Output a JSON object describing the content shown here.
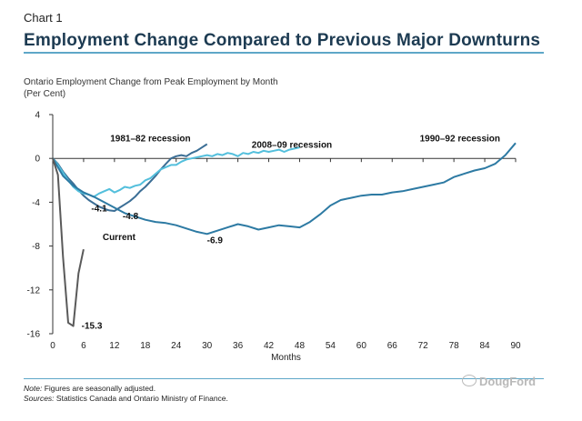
{
  "header": {
    "chart_label": "Chart 1",
    "title": "Employment Change Compared to Previous Major Downturns"
  },
  "chart_data": {
    "type": "line",
    "subtitle": "Ontario Employment Change from Peak Employment by Month",
    "unit": "(Per Cent)",
    "xlabel": "Months",
    "ylabel": "",
    "xlim": [
      0,
      90
    ],
    "ylim": [
      -16,
      4
    ],
    "xticks": [
      0,
      6,
      12,
      18,
      24,
      30,
      36,
      42,
      48,
      54,
      60,
      66,
      72,
      78,
      84,
      90
    ],
    "yticks": [
      4,
      0,
      -4,
      -8,
      -12,
      -16
    ],
    "grid": false,
    "series": [
      {
        "name": "1981–82 recession",
        "color": "#3b6e95",
        "x": [
          0,
          1,
          2,
          3,
          4,
          5,
          6,
          7,
          8,
          9,
          10,
          11,
          12,
          13,
          14,
          15,
          16,
          17,
          18,
          19,
          20,
          21,
          22,
          23,
          24,
          25,
          26,
          27,
          28,
          29,
          30
        ],
        "y": [
          0,
          -0.5,
          -1.2,
          -1.8,
          -2.3,
          -2.9,
          -3.4,
          -3.8,
          -4.1,
          -4.4,
          -4.6,
          -4.75,
          -4.8,
          -4.5,
          -4.2,
          -3.9,
          -3.5,
          -3.0,
          -2.6,
          -2.1,
          -1.6,
          -1.0,
          -0.5,
          0.0,
          0.2,
          0.3,
          0.2,
          0.5,
          0.7,
          1.0,
          1.3
        ]
      },
      {
        "name": "2008–09 recession",
        "color": "#53bfdc",
        "x": [
          0,
          1,
          2,
          3,
          4,
          5,
          6,
          7,
          8,
          9,
          10,
          11,
          12,
          13,
          14,
          15,
          16,
          17,
          18,
          19,
          20,
          21,
          22,
          23,
          24,
          25,
          26,
          27,
          28,
          29,
          30,
          31,
          32,
          33,
          34,
          35,
          36,
          37,
          38,
          39,
          40,
          41,
          42,
          43,
          44,
          45,
          46,
          47,
          48
        ],
        "y": [
          0,
          -0.6,
          -1.3,
          -2.0,
          -2.6,
          -3.0,
          -3.2,
          -3.3,
          -3.5,
          -3.2,
          -3.0,
          -2.8,
          -3.1,
          -2.9,
          -2.6,
          -2.7,
          -2.5,
          -2.4,
          -2.0,
          -1.8,
          -1.4,
          -1.0,
          -0.8,
          -0.6,
          -0.6,
          -0.3,
          -0.1,
          0.0,
          0.1,
          0.2,
          0.3,
          0.2,
          0.4,
          0.3,
          0.5,
          0.4,
          0.2,
          0.5,
          0.4,
          0.6,
          0.5,
          0.7,
          0.6,
          0.7,
          0.8,
          0.6,
          0.8,
          0.9,
          1.0
        ]
      },
      {
        "name": "1990–92 recession",
        "color": "#2d7aa3",
        "x": [
          0,
          2,
          4,
          6,
          8,
          10,
          12,
          14,
          16,
          18,
          20,
          22,
          24,
          26,
          28,
          30,
          32,
          34,
          36,
          38,
          40,
          42,
          44,
          46,
          48,
          50,
          52,
          54,
          56,
          58,
          60,
          62,
          64,
          66,
          68,
          70,
          72,
          74,
          76,
          78,
          80,
          82,
          84,
          86,
          88,
          90
        ],
        "y": [
          0,
          -1.6,
          -2.5,
          -3.1,
          -3.5,
          -4.0,
          -4.5,
          -5.0,
          -5.3,
          -5.6,
          -5.8,
          -5.9,
          -6.1,
          -6.4,
          -6.7,
          -6.9,
          -6.6,
          -6.3,
          -6.0,
          -6.2,
          -6.5,
          -6.3,
          -6.1,
          -6.2,
          -6.3,
          -5.8,
          -5.1,
          -4.3,
          -3.8,
          -3.6,
          -3.4,
          -3.3,
          -3.3,
          -3.1,
          -3.0,
          -2.8,
          -2.6,
          -2.4,
          -2.2,
          -1.7,
          -1.4,
          -1.1,
          -0.9,
          -0.5,
          0.3,
          1.4
        ]
      },
      {
        "name": "Current",
        "color": "#5a5a5a",
        "x": [
          0,
          1,
          2,
          3,
          4,
          5,
          6
        ],
        "y": [
          0,
          -1.5,
          -9.0,
          -15.0,
          -15.3,
          -10.5,
          -8.3
        ]
      }
    ],
    "annotations": [
      {
        "text": "1981–82 recession",
        "x": 19,
        "y": 1.8
      },
      {
        "text": "2008–09 recession",
        "x": 46.5,
        "y": 1.2
      },
      {
        "text": "1990–92 recession",
        "x": 87,
        "y": 1.8
      },
      {
        "text": "-4.1",
        "x": 7.5,
        "y": -4.6
      },
      {
        "text": "-4.8",
        "x": 13.6,
        "y": -5.3
      },
      {
        "text": "-6.9",
        "x": 30,
        "y": -7.5
      },
      {
        "text": "Current",
        "x": 9.7,
        "y": -7.2
      },
      {
        "text": "-15.3",
        "x": 5.6,
        "y": -15.3
      }
    ]
  },
  "footer": {
    "note_label": "Note:",
    "note_text": " Figures are seasonally adjusted.",
    "sources_label": "Sources:",
    "sources_text": " Statistics Canada and Ontario Ministry of Finance.",
    "watermark": "DougFord"
  }
}
